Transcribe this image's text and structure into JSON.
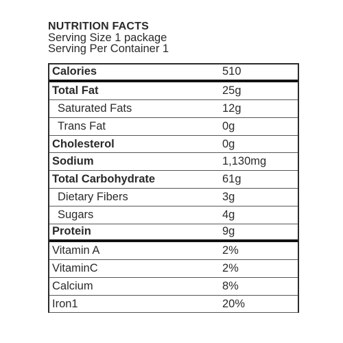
{
  "header": {
    "title": "NUTRITION FACTS",
    "serving_size": "Serving Size 1 package",
    "serving_per_container": "Serving Per Container 1"
  },
  "rows": [
    {
      "label": "Calories",
      "value": "510",
      "bold": true,
      "sub": false
    },
    {
      "label": "Total Fat",
      "value": "25g",
      "bold": true,
      "sub": false
    },
    {
      "label": "Saturated Fats",
      "value": "12g",
      "bold": false,
      "sub": true
    },
    {
      "label": "Trans Fat",
      "value": "0g",
      "bold": false,
      "sub": true
    },
    {
      "label": "Cholesterol",
      "value": "0g",
      "bold": true,
      "sub": false
    },
    {
      "label": "Sodium",
      "value": "1,130mg",
      "bold": true,
      "sub": false
    },
    {
      "label": "Total Carbohydrate",
      "value": "61g",
      "bold": true,
      "sub": false
    },
    {
      "label": "Dietary Fibers",
      "value": "3g",
      "bold": false,
      "sub": true
    },
    {
      "label": "Sugars",
      "value": "4g",
      "bold": false,
      "sub": true
    },
    {
      "label": "Protein",
      "value": "9g",
      "bold": true,
      "sub": false
    },
    {
      "label": "Vitamin A",
      "value": "2%",
      "bold": false,
      "sub": false
    },
    {
      "label": "VitaminC",
      "value": "2%",
      "bold": false,
      "sub": false
    },
    {
      "label": "Calcium",
      "value": "8%",
      "bold": false,
      "sub": false
    },
    {
      "label": "Iron1",
      "value": "20%",
      "bold": false,
      "sub": false
    }
  ]
}
